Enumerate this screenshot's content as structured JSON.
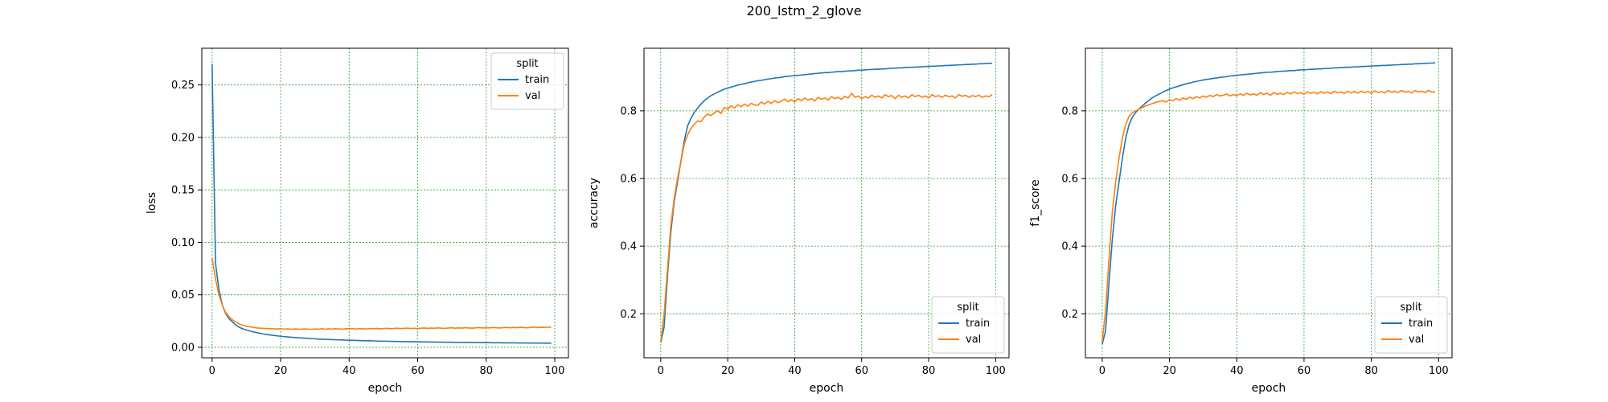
{
  "figure": {
    "title": "200_lstm_2_glove"
  },
  "colors": {
    "train": "#1f77b4",
    "val": "#ff7f0e",
    "grid": "#2ca02c",
    "axis": "#000000"
  },
  "chart_data": [
    {
      "type": "line",
      "ylabel": "loss",
      "xlabel": "epoch",
      "xlim": [
        -3,
        104
      ],
      "ylim": [
        -0.01,
        0.285
      ],
      "xticks": [
        0,
        20,
        40,
        60,
        80,
        100
      ],
      "xtick_labels": [
        "0",
        "20",
        "40",
        "60",
        "80",
        "100"
      ],
      "yticks": [
        0.0,
        0.05,
        0.1,
        0.15,
        0.2,
        0.25
      ],
      "ytick_labels": [
        "0.00",
        "0.05",
        "0.10",
        "0.15",
        "0.20",
        "0.25"
      ],
      "grid": true,
      "legend": {
        "title": "split",
        "position": "top-right",
        "entries": [
          "train",
          "val"
        ]
      },
      "series": [
        {
          "name": "train",
          "x_start": 0,
          "values": [
            0.27,
            0.08,
            0.055,
            0.04,
            0.032,
            0.027,
            0.024,
            0.021,
            0.019,
            0.0175,
            0.0165,
            0.0155,
            0.0147,
            0.014,
            0.0133,
            0.0127,
            0.0122,
            0.0117,
            0.0113,
            0.0109,
            0.0105,
            0.0102,
            0.0099,
            0.0096,
            0.0094,
            0.0091,
            0.0089,
            0.0087,
            0.0085,
            0.0083,
            0.0081,
            0.0079,
            0.0078,
            0.0076,
            0.0075,
            0.0073,
            0.0072,
            0.0071,
            0.007,
            0.0068,
            0.0067,
            0.0066,
            0.0065,
            0.0064,
            0.0063,
            0.0062,
            0.0062,
            0.0061,
            0.006,
            0.0059,
            0.0058,
            0.0058,
            0.0057,
            0.0056,
            0.0056,
            0.0055,
            0.0054,
            0.0054,
            0.0053,
            0.0053,
            0.0052,
            0.0052,
            0.0051,
            0.0051,
            0.005,
            0.005,
            0.0049,
            0.0049,
            0.0048,
            0.0048,
            0.0048,
            0.0047,
            0.0047,
            0.0046,
            0.0046,
            0.0046,
            0.0045,
            0.0045,
            0.0045,
            0.0044,
            0.0044,
            0.0044,
            0.0043,
            0.0043,
            0.0043,
            0.0042,
            0.0042,
            0.0042,
            0.0042,
            0.0041,
            0.0041,
            0.0041,
            0.0041,
            0.004,
            0.004,
            0.004,
            0.004,
            0.0039,
            0.0039,
            0.0039
          ]
        },
        {
          "name": "val",
          "x_start": 0,
          "values": [
            0.085,
            0.065,
            0.05,
            0.04,
            0.033,
            0.029,
            0.026,
            0.024,
            0.022,
            0.021,
            0.02,
            0.0195,
            0.019,
            0.0185,
            0.0182,
            0.018,
            0.0178,
            0.0177,
            0.0176,
            0.0175,
            0.0177,
            0.0173,
            0.0176,
            0.0172,
            0.0175,
            0.0174,
            0.0172,
            0.0176,
            0.0173,
            0.0171,
            0.0175,
            0.0173,
            0.0177,
            0.0172,
            0.0176,
            0.0174,
            0.0178,
            0.0175,
            0.0173,
            0.0177,
            0.0176,
            0.0179,
            0.0174,
            0.0178,
            0.0176,
            0.0175,
            0.0179,
            0.0177,
            0.018,
            0.0176,
            0.0178,
            0.0181,
            0.0177,
            0.0179,
            0.0182,
            0.0178,
            0.018,
            0.0183,
            0.0179,
            0.0181,
            0.0178,
            0.0182,
            0.0184,
            0.018,
            0.0183,
            0.0181,
            0.0185,
            0.0182,
            0.018,
            0.0184,
            0.0186,
            0.0182,
            0.0185,
            0.0183,
            0.0187,
            0.0184,
            0.0182,
            0.0186,
            0.0188,
            0.0184,
            0.0187,
            0.0185,
            0.0189,
            0.0186,
            0.0184,
            0.0188,
            0.019,
            0.0186,
            0.0189,
            0.0187,
            0.0191,
            0.0188,
            0.0186,
            0.019,
            0.0192,
            0.0188,
            0.0191,
            0.0189,
            0.0193,
            0.019
          ]
        }
      ]
    },
    {
      "type": "line",
      "ylabel": "accuracy",
      "xlabel": "epoch",
      "xlim": [
        -5,
        104
      ],
      "ylim": [
        0.07,
        0.985
      ],
      "xticks": [
        0,
        20,
        40,
        60,
        80,
        100
      ],
      "xtick_labels": [
        "0",
        "20",
        "40",
        "60",
        "80",
        "100"
      ],
      "yticks": [
        0.2,
        0.4,
        0.6,
        0.8
      ],
      "ytick_labels": [
        "0.2",
        "0.4",
        "0.6",
        "0.8"
      ],
      "grid": true,
      "legend": {
        "title": "split",
        "position": "bottom-right",
        "entries": [
          "train",
          "val"
        ]
      },
      "series": [
        {
          "name": "train",
          "x_start": 0,
          "values": [
            0.115,
            0.16,
            0.31,
            0.44,
            0.53,
            0.59,
            0.65,
            0.71,
            0.755,
            0.778,
            0.795,
            0.808,
            0.82,
            0.83,
            0.838,
            0.845,
            0.85,
            0.855,
            0.86,
            0.864,
            0.867,
            0.87,
            0.873,
            0.876,
            0.878,
            0.88,
            0.883,
            0.885,
            0.887,
            0.889,
            0.89,
            0.892,
            0.894,
            0.895,
            0.897,
            0.898,
            0.899,
            0.901,
            0.902,
            0.903,
            0.904,
            0.905,
            0.906,
            0.907,
            0.908,
            0.909,
            0.91,
            0.911,
            0.912,
            0.913,
            0.913,
            0.914,
            0.915,
            0.916,
            0.916,
            0.917,
            0.918,
            0.918,
            0.919,
            0.92,
            0.92,
            0.921,
            0.922,
            0.922,
            0.923,
            0.923,
            0.924,
            0.924,
            0.925,
            0.926,
            0.926,
            0.927,
            0.927,
            0.928,
            0.928,
            0.929,
            0.929,
            0.93,
            0.93,
            0.931,
            0.931,
            0.932,
            0.932,
            0.933,
            0.933,
            0.934,
            0.934,
            0.935,
            0.935,
            0.936,
            0.936,
            0.937,
            0.937,
            0.938,
            0.938,
            0.939,
            0.939,
            0.94,
            0.94,
            0.941
          ]
        },
        {
          "name": "val",
          "x_start": 0,
          "values": [
            0.118,
            0.2,
            0.33,
            0.46,
            0.54,
            0.6,
            0.65,
            0.7,
            0.728,
            0.748,
            0.76,
            0.77,
            0.768,
            0.782,
            0.79,
            0.786,
            0.794,
            0.8,
            0.792,
            0.81,
            0.805,
            0.815,
            0.808,
            0.818,
            0.812,
            0.82,
            0.814,
            0.822,
            0.818,
            0.816,
            0.826,
            0.82,
            0.828,
            0.822,
            0.83,
            0.824,
            0.829,
            0.835,
            0.827,
            0.833,
            0.826,
            0.836,
            0.83,
            0.838,
            0.832,
            0.836,
            0.829,
            0.84,
            0.834,
            0.838,
            0.832,
            0.842,
            0.836,
            0.84,
            0.834,
            0.843,
            0.838,
            0.852,
            0.84,
            0.844,
            0.836,
            0.842,
            0.838,
            0.846,
            0.84,
            0.844,
            0.838,
            0.848,
            0.842,
            0.845,
            0.836,
            0.846,
            0.84,
            0.844,
            0.838,
            0.848,
            0.842,
            0.846,
            0.84,
            0.844,
            0.838,
            0.848,
            0.842,
            0.845,
            0.84,
            0.846,
            0.842,
            0.844,
            0.838,
            0.848,
            0.843,
            0.846,
            0.84,
            0.845,
            0.842,
            0.846,
            0.84,
            0.844,
            0.842,
            0.848
          ]
        }
      ]
    },
    {
      "type": "line",
      "ylabel": "f1_score",
      "xlabel": "epoch",
      "xlim": [
        -5,
        104
      ],
      "ylim": [
        0.07,
        0.985
      ],
      "xticks": [
        0,
        20,
        40,
        60,
        80,
        100
      ],
      "xtick_labels": [
        "0",
        "20",
        "40",
        "60",
        "80",
        "100"
      ],
      "yticks": [
        0.2,
        0.4,
        0.6,
        0.8
      ],
      "ytick_labels": [
        "0.2",
        "0.4",
        "0.6",
        "0.8"
      ],
      "grid": true,
      "legend": {
        "title": "split",
        "position": "bottom-right",
        "entries": [
          "train",
          "val"
        ]
      },
      "series": [
        {
          "name": "train",
          "x_start": 0,
          "values": [
            0.11,
            0.15,
            0.29,
            0.42,
            0.52,
            0.59,
            0.66,
            0.72,
            0.76,
            0.782,
            0.796,
            0.806,
            0.815,
            0.824,
            0.832,
            0.839,
            0.845,
            0.85,
            0.855,
            0.86,
            0.864,
            0.868,
            0.871,
            0.874,
            0.877,
            0.88,
            0.882,
            0.885,
            0.887,
            0.889,
            0.891,
            0.893,
            0.894,
            0.896,
            0.897,
            0.899,
            0.9,
            0.901,
            0.903,
            0.904,
            0.905,
            0.906,
            0.907,
            0.908,
            0.909,
            0.91,
            0.911,
            0.912,
            0.913,
            0.914,
            0.914,
            0.915,
            0.916,
            0.917,
            0.917,
            0.918,
            0.919,
            0.919,
            0.92,
            0.921,
            0.921,
            0.922,
            0.923,
            0.923,
            0.924,
            0.924,
            0.925,
            0.925,
            0.926,
            0.927,
            0.927,
            0.928,
            0.928,
            0.929,
            0.929,
            0.93,
            0.93,
            0.931,
            0.931,
            0.932,
            0.932,
            0.933,
            0.933,
            0.934,
            0.934,
            0.935,
            0.935,
            0.936,
            0.936,
            0.937,
            0.937,
            0.938,
            0.938,
            0.939,
            0.939,
            0.94,
            0.94,
            0.941,
            0.941,
            0.942
          ]
        },
        {
          "name": "val",
          "x_start": 0,
          "values": [
            0.118,
            0.21,
            0.36,
            0.5,
            0.59,
            0.66,
            0.72,
            0.76,
            0.784,
            0.795,
            0.8,
            0.805,
            0.81,
            0.815,
            0.818,
            0.822,
            0.825,
            0.828,
            0.83,
            0.826,
            0.833,
            0.83,
            0.836,
            0.832,
            0.838,
            0.834,
            0.84,
            0.836,
            0.842,
            0.838,
            0.844,
            0.84,
            0.846,
            0.842,
            0.848,
            0.844,
            0.846,
            0.85,
            0.844,
            0.848,
            0.845,
            0.85,
            0.846,
            0.852,
            0.847,
            0.85,
            0.846,
            0.854,
            0.848,
            0.852,
            0.846,
            0.854,
            0.849,
            0.852,
            0.848,
            0.855,
            0.85,
            0.856,
            0.851,
            0.854,
            0.849,
            0.856,
            0.852,
            0.855,
            0.85,
            0.857,
            0.852,
            0.856,
            0.851,
            0.858,
            0.853,
            0.856,
            0.851,
            0.858,
            0.853,
            0.857,
            0.852,
            0.858,
            0.854,
            0.857,
            0.852,
            0.859,
            0.854,
            0.857,
            0.853,
            0.86,
            0.855,
            0.858,
            0.854,
            0.86,
            0.855,
            0.858,
            0.853,
            0.86,
            0.856,
            0.858,
            0.854,
            0.86,
            0.856,
            0.855
          ]
        }
      ]
    }
  ]
}
